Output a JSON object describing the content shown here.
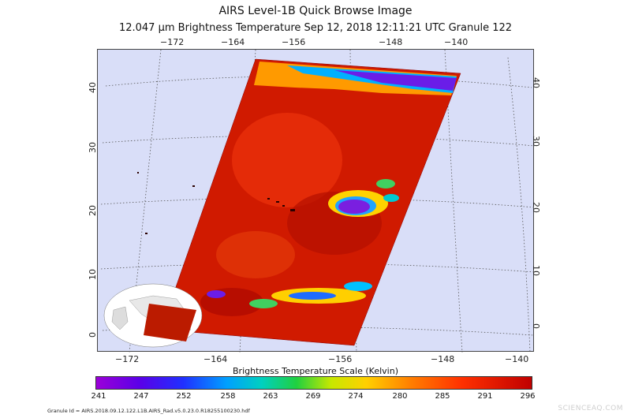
{
  "title": "AIRS Level-1B Quick Browse Image",
  "subtitle": "12.047 µm Brightness Temperature    Sep 12, 2018 12:11:21 UTC   Granule 122",
  "top_lon_ticks": [
    "−172",
    "−164",
    "−156",
    "−148",
    "−140"
  ],
  "bottom_lon_ticks": [
    "−172",
    "−164",
    "−156",
    "−148",
    "−140"
  ],
  "left_lat_ticks": [
    "40",
    "30",
    "20",
    "10",
    "0"
  ],
  "right_lat_ticks": [
    "40",
    "30",
    "20",
    "10",
    "0"
  ],
  "colorbar": {
    "label": "Brightness Temperature Scale (Kelvin)",
    "ticks": [
      "241",
      "247",
      "252",
      "258",
      "263",
      "269",
      "274",
      "280",
      "285",
      "291",
      "296"
    ]
  },
  "granule_id": "Granule Id = AIRS.2018.09.12.122.L1B.AIRS_Rad.v5.0.23.0.R18255100230.hdf",
  "watermark": "SCIENCEAQ.COM",
  "colors": {
    "background": "#d9def8",
    "warm": "#d21a00",
    "cold": "#7a1fe0",
    "land": "#bb1b00"
  }
}
